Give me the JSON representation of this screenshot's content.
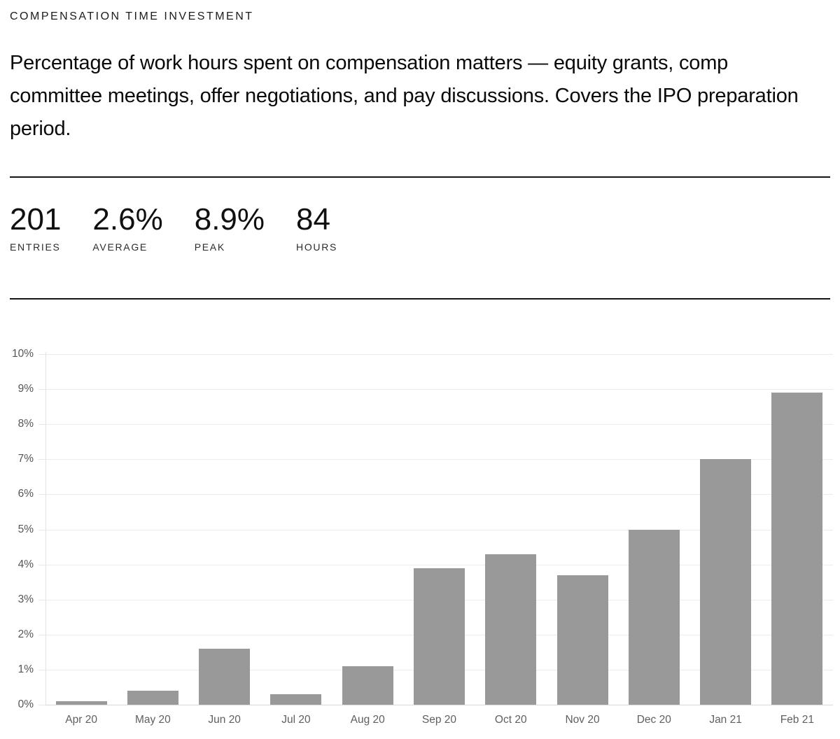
{
  "header": {
    "title": "COMPENSATION TIME INVESTMENT"
  },
  "description": "Percentage of work hours spent on compensation matters — equity grants, comp committee meetings, offer negotiations, and pay discussions. Covers the IPO preparation period.",
  "stats": [
    {
      "value": "201",
      "label": "ENTRIES"
    },
    {
      "value": "2.6%",
      "label": "AVERAGE"
    },
    {
      "value": "8.9%",
      "label": "PEAK"
    },
    {
      "value": "84",
      "label": "HOURS"
    }
  ],
  "colors": {
    "bar": "#999999",
    "grid": "#ececec",
    "baseline": "#d9d9d9",
    "axis": "#e3e3e3",
    "tick": "#e7e7e7"
  },
  "chart_data": {
    "type": "bar",
    "categories": [
      "Apr 20",
      "May 20",
      "Jun 20",
      "Jul 20",
      "Aug 20",
      "Sep 20",
      "Oct 20",
      "Nov 20",
      "Dec 20",
      "Jan 21",
      "Feb 21"
    ],
    "values": [
      0.1,
      0.4,
      1.6,
      0.3,
      1.1,
      3.9,
      4.3,
      3.7,
      5.0,
      7.0,
      8.9
    ],
    "title": "",
    "xlabel": "",
    "ylabel": "",
    "ylim": [
      0,
      10
    ],
    "ytick_step": 1,
    "ytick_suffix": "%",
    "grid": true,
    "legend": false
  }
}
